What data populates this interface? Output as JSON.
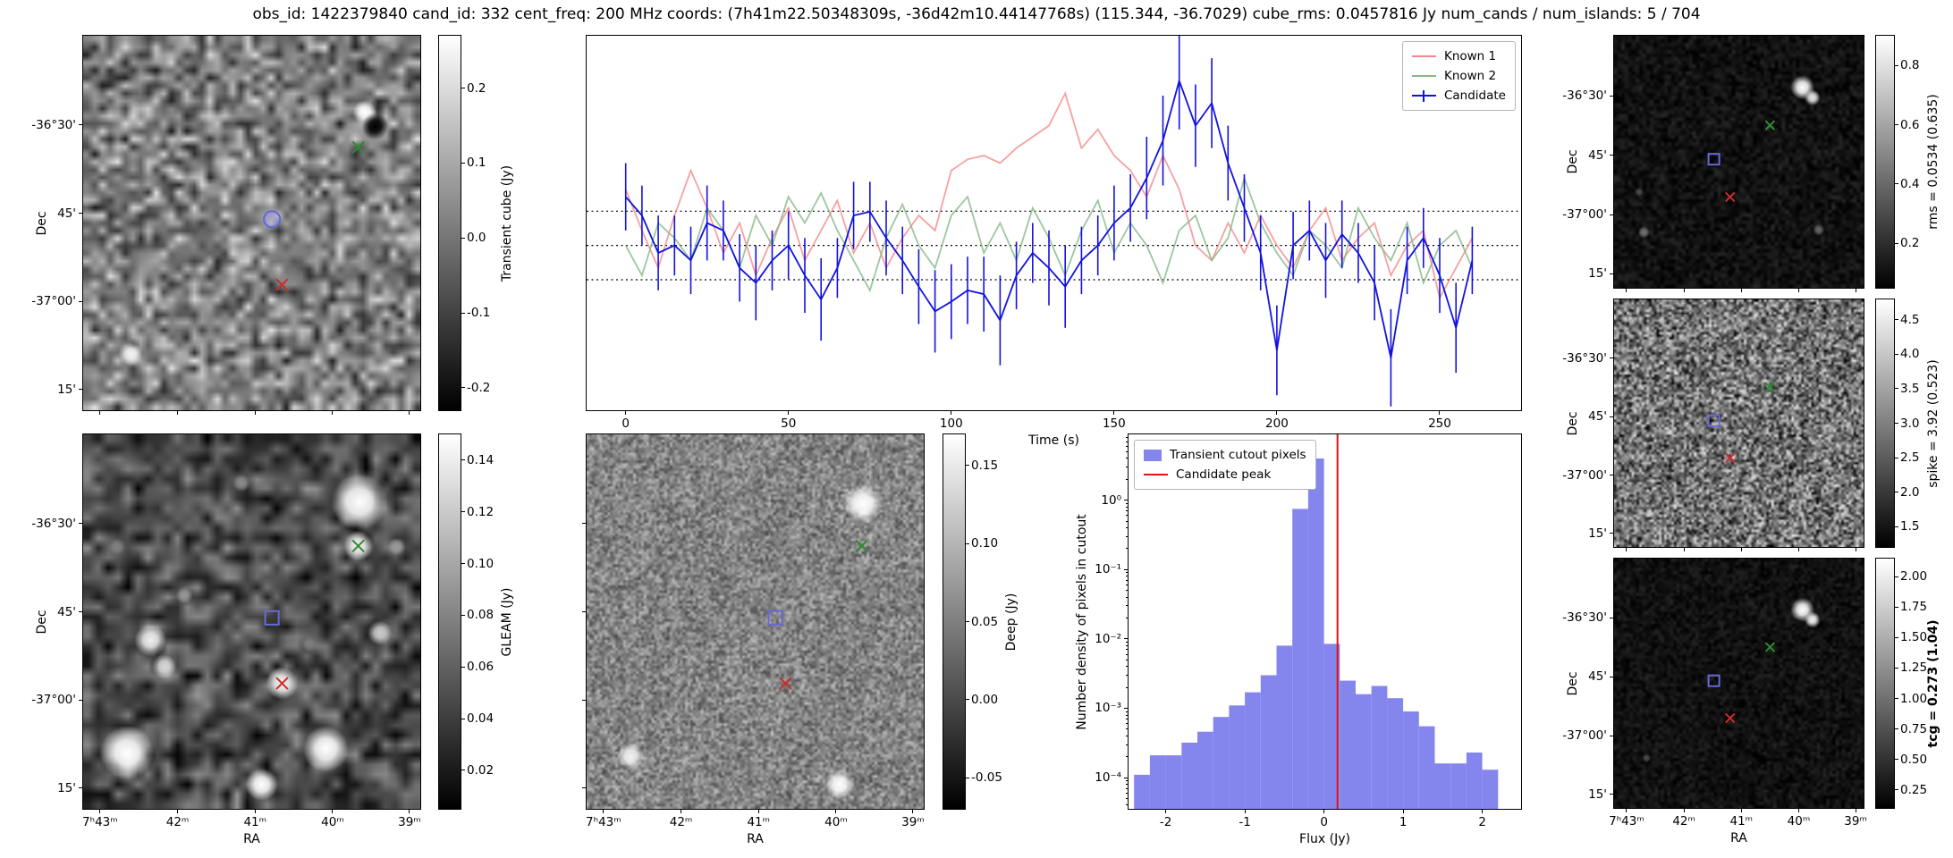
{
  "title": "obs_id: 1422379840 cand_id: 332 cent_freq: 200 MHz coords: (7h41m22.50348309s, -36d42m10.44147768s) (115.344, -36.7029) cube_rms: 0.0457816 Jy num_cands / num_islands: 5 / 704",
  "colors": {
    "known1": "#f58888",
    "known2": "#84b884",
    "candidate": "#1212e0",
    "hist_fill": "#8585ee",
    "peak_line": "#e01212",
    "marker_blue": "#6868d8",
    "marker_red": "#cc2b2b",
    "marker_green": "#2e8b2e"
  },
  "axes": {
    "dec_label": "Dec",
    "ra_label": "RA",
    "dec_ticks": {
      "labels": [
        "-36°30'",
        "45'",
        "-37°00'",
        "15'"
      ],
      "fracs": [
        0.238,
        0.474,
        0.71,
        0.945
      ]
    },
    "ra_ticks": {
      "labels": [
        "7ʰ43ᵐ",
        "42ᵐ",
        "41ᵐ",
        "40ᵐ",
        "39ᵐ"
      ],
      "fracs": [
        0.05,
        0.28,
        0.51,
        0.74,
        0.968
      ]
    }
  },
  "panels": {
    "transient": {
      "cb_label": "Transient cube (Jy)",
      "cb_ticks": {
        "labels": [
          "0.2",
          "0.1",
          "0.0",
          "-0.1",
          "-0.2"
        ],
        "fracs": [
          0.14,
          0.34,
          0.54,
          0.74,
          0.94
        ]
      },
      "markers": {
        "blue": [
          0.56,
          0.49
        ],
        "blue_shape": "circle",
        "red": [
          0.59,
          0.665
        ],
        "green": [
          0.816,
          0.298
        ]
      }
    },
    "gleam": {
      "cb_label": "GLEAM (Jy)",
      "cb_ticks": {
        "labels": [
          "0.14",
          "0.12",
          "0.10",
          "0.08",
          "0.06",
          "0.04",
          "0.02"
        ],
        "fracs": [
          0.069,
          0.207,
          0.345,
          0.483,
          0.621,
          0.759,
          0.897
        ]
      },
      "markers": {
        "blue": [
          0.56,
          0.49
        ],
        "blue_shape": "square",
        "red": [
          0.59,
          0.665
        ],
        "green": [
          0.816,
          0.298
        ]
      }
    },
    "deep": {
      "cb_label": "Deep (Jy)",
      "cb_ticks": {
        "labels": [
          "0.15",
          "0.10",
          "0.05",
          "0.00",
          "-0.05"
        ],
        "fracs": [
          0.083,
          0.292,
          0.5,
          0.708,
          0.917
        ]
      },
      "markers": {
        "blue": [
          0.56,
          0.49
        ],
        "blue_shape": "square",
        "red": [
          0.59,
          0.665
        ],
        "green": [
          0.816,
          0.298
        ]
      }
    },
    "rms": {
      "cb_label": "rms = 0.0534 (0.635)",
      "cb_ticks": {
        "labels": [
          "0.8",
          "0.6",
          "0.4",
          "0.2"
        ],
        "fracs": [
          0.118,
          0.353,
          0.588,
          0.824
        ]
      },
      "markers": {
        "blue": [
          0.4,
          0.49
        ],
        "blue_shape": "square",
        "red": [
          0.465,
          0.64
        ],
        "green": [
          0.625,
          0.355
        ]
      }
    },
    "spike": {
      "cb_label": "spike = 3.92 (0.523)",
      "cb_ticks": {
        "labels": [
          "4.5",
          "4.0",
          "3.5",
          "3.0",
          "2.5",
          "2.0",
          "1.5"
        ],
        "fracs": [
          0.083,
          0.222,
          0.361,
          0.5,
          0.639,
          0.778,
          0.917
        ]
      },
      "markers": {
        "blue": [
          0.4,
          0.49
        ],
        "blue_shape": "square",
        "red": [
          0.465,
          0.64
        ],
        "green": [
          0.625,
          0.355
        ]
      }
    },
    "tcg": {
      "cb_label": "tcg = 0.273 (1.04)",
      "cb_ticks": {
        "labels": [
          "2.00",
          "1.75",
          "1.50",
          "1.25",
          "1.00",
          "0.75",
          "0.50",
          "0.25"
        ],
        "fracs": [
          0.073,
          0.195,
          0.317,
          0.439,
          0.561,
          0.683,
          0.805,
          0.927
        ]
      },
      "markers": {
        "blue": [
          0.4,
          0.49
        ],
        "blue_shape": "square",
        "red": [
          0.465,
          0.64
        ],
        "green": [
          0.625,
          0.355
        ]
      }
    }
  },
  "chart_data": [
    {
      "id": "lightcurve",
      "type": "line",
      "xlabel": "Time (s)",
      "x_ticks": [
        0,
        50,
        100,
        150,
        200,
        250
      ],
      "xlim": [
        -12,
        275
      ],
      "ylim": [
        -0.22,
        0.28
      ],
      "hlines": [
        0.0458,
        0.0,
        -0.0458
      ],
      "x": [
        0,
        5,
        10,
        15,
        20,
        25,
        30,
        35,
        40,
        45,
        50,
        55,
        60,
        65,
        70,
        75,
        80,
        85,
        90,
        95,
        100,
        105,
        110,
        115,
        120,
        125,
        130,
        135,
        140,
        145,
        150,
        155,
        160,
        165,
        170,
        175,
        180,
        185,
        190,
        195,
        200,
        205,
        210,
        215,
        220,
        225,
        230,
        235,
        240,
        245,
        250,
        255,
        260
      ],
      "series": [
        {
          "name": "Known 1",
          "color_key": "known1",
          "values": [
            0.075,
            0.02,
            -0.03,
            0.04,
            0.1,
            0.05,
            -0.01,
            0.03,
            -0.04,
            0.01,
            0.05,
            -0.02,
            0.02,
            0.06,
            -0.01,
            0.03,
            -0.03,
            0.01,
            0.04,
            0.02,
            0.1,
            0.115,
            0.12,
            0.11,
            0.13,
            0.145,
            0.16,
            0.203,
            0.13,
            0.155,
            0.12,
            0.1,
            0.065,
            0.12,
            0.075,
            0.0,
            -0.02,
            0.03,
            -0.01,
            0.04,
            0.0,
            -0.03,
            0.02,
            0.05,
            -0.02,
            0.01,
            0.03,
            -0.04,
            0.0,
            0.02,
            -0.07,
            -0.03,
            0.01
          ]
        },
        {
          "name": "Known 2",
          "color_key": "known2",
          "values": [
            0.0,
            -0.04,
            0.03,
            0.01,
            -0.02,
            0.05,
            0.02,
            -0.03,
            0.04,
            0.0,
            0.065,
            0.03,
            0.07,
            0.02,
            -0.02,
            -0.06,
            0.01,
            0.055,
            0.0,
            -0.03,
            0.04,
            0.065,
            -0.01,
            0.03,
            -0.02,
            0.05,
            0.01,
            -0.04,
            0.02,
            0.06,
            -0.01,
            0.03,
            0.0,
            -0.05,
            0.02,
            0.04,
            -0.02,
            0.01,
            0.09,
            0.03,
            -0.01,
            -0.04,
            0.02,
            0.0,
            -0.03,
            0.05,
            0.01,
            -0.02,
            0.03,
            -0.05,
            0.0,
            0.02,
            -0.03
          ]
        },
        {
          "name": "Candidate",
          "color_key": "candidate",
          "values": [
            0.065,
            0.04,
            -0.01,
            0.0,
            -0.02,
            0.03,
            0.02,
            -0.03,
            -0.05,
            -0.02,
            0.0,
            -0.04,
            -0.072,
            -0.03,
            0.04,
            0.045,
            0.01,
            -0.02,
            -0.055,
            -0.088,
            -0.075,
            -0.06,
            -0.065,
            -0.1,
            -0.04,
            -0.01,
            -0.03,
            -0.055,
            -0.02,
            0.0,
            0.03,
            0.05,
            0.09,
            0.14,
            0.22,
            0.16,
            0.19,
            0.11,
            0.05,
            -0.01,
            -0.14,
            0.0,
            0.02,
            -0.02,
            0.015,
            -0.01,
            -0.05,
            -0.15,
            -0.02,
            0.01,
            -0.04,
            -0.11,
            -0.02
          ],
          "errors": [
            0.045,
            0.04,
            0.05,
            0.04,
            0.045,
            0.05,
            0.04,
            0.045,
            0.05,
            0.04,
            0.045,
            0.05,
            0.055,
            0.04,
            0.045,
            0.04,
            0.05,
            0.045,
            0.05,
            0.055,
            0.05,
            0.045,
            0.05,
            0.06,
            0.045,
            0.04,
            0.05,
            0.055,
            0.045,
            0.04,
            0.05,
            0.045,
            0.055,
            0.06,
            0.065,
            0.055,
            0.06,
            0.05,
            0.045,
            0.05,
            0.06,
            0.045,
            0.04,
            0.05,
            0.045,
            0.04,
            0.05,
            0.065,
            0.045,
            0.04,
            0.05,
            0.06,
            0.045
          ]
        }
      ]
    },
    {
      "id": "histogram",
      "type": "bar",
      "xlabel": "Flux (Jy)",
      "ylabel": "Number density of pixels in cutout",
      "legend": [
        "Transient cutout pixels",
        "Candidate peak"
      ],
      "bin_start": -2.4,
      "bin_width": 0.2,
      "densities": [
        0.00011,
        0.00021,
        0.00021,
        0.00032,
        0.00046,
        0.00075,
        0.0011,
        0.0017,
        0.003,
        0.008,
        0.75,
        4.0,
        0.0085,
        0.0025,
        0.0016,
        0.0021,
        0.0014,
        0.0009,
        0.00055,
        0.00016,
        0.00016,
        0.00023,
        0.00013
      ],
      "peak_flux": 0.17,
      "xlim": [
        -2.47,
        2.49
      ],
      "ylim_log": [
        -4.45,
        0.95
      ],
      "x_ticks": [
        -2,
        -1,
        0,
        1,
        2
      ],
      "y_ticks_exp": [
        0,
        -1,
        -2,
        -3,
        -4
      ],
      "y_tick_labels": [
        "10⁰",
        "10⁻¹",
        "10⁻²",
        "10⁻³",
        "10⁻⁴"
      ]
    }
  ]
}
